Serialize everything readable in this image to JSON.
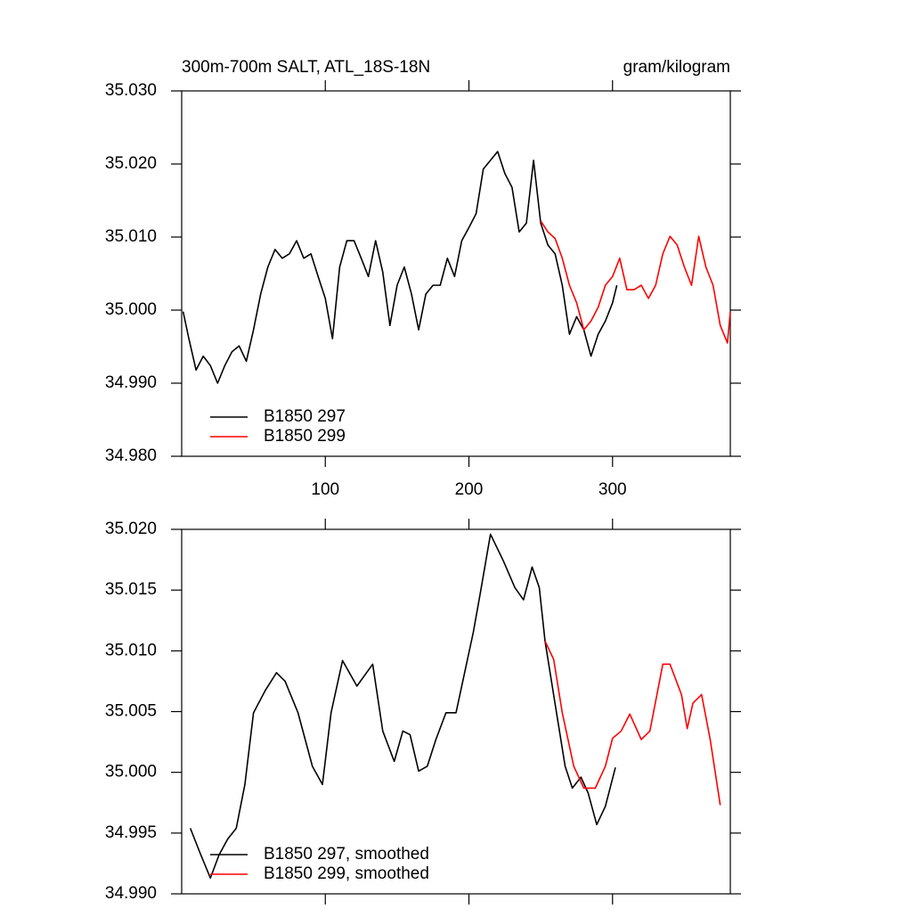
{
  "chart_data": [
    {
      "type": "line",
      "title": "300m-700m SALT, ATL_18S-18N",
      "units": "gram/kilogram",
      "xlim": [
        0,
        382
      ],
      "xticks": [
        100,
        200,
        300
      ],
      "ylim": [
        34.98,
        35.03
      ],
      "yticks": [
        {
          "value": 34.98,
          "label": "34.980"
        },
        {
          "value": 34.99,
          "label": "34.990"
        },
        {
          "value": 35.0,
          "label": "35.000"
        },
        {
          "value": 35.01,
          "label": "35.010"
        },
        {
          "value": 35.02,
          "label": "35.020"
        },
        {
          "value": 35.03,
          "label": "35.030"
        }
      ],
      "legend": "lower left",
      "series": [
        {
          "name": "B1850 297",
          "color": "#000000",
          "x": [
            1,
            5,
            10,
            15,
            20,
            25,
            30,
            35,
            40,
            45,
            50,
            55,
            60,
            65,
            70,
            75,
            80,
            85,
            90,
            95,
            100,
            105,
            110,
            115,
            120,
            125,
            130,
            135,
            140,
            145,
            150,
            155,
            160,
            165,
            170,
            175,
            180,
            185,
            190,
            195,
            200,
            205,
            210,
            215,
            220,
            225,
            230,
            235,
            240,
            245,
            250,
            255,
            260,
            265,
            270,
            275,
            280,
            285,
            290,
            295,
            300,
            303
          ],
          "values": [
            34.9998,
            34.9961,
            34.9918,
            34.9937,
            34.9924,
            34.99,
            34.9924,
            34.9943,
            34.9951,
            34.993,
            34.9973,
            35.0022,
            35.0059,
            35.0083,
            35.0071,
            35.0077,
            35.0095,
            35.0071,
            35.0077,
            35.0046,
            35.0016,
            34.9961,
            35.0059,
            35.0095,
            35.0095,
            35.0071,
            35.0046,
            35.0095,
            35.0052,
            34.9979,
            35.0034,
            35.0059,
            35.0022,
            34.9973,
            35.0022,
            35.0034,
            35.0034,
            35.0071,
            35.0046,
            35.0095,
            35.0113,
            35.0132,
            35.0193,
            35.0205,
            35.0217,
            35.0187,
            35.0168,
            35.0107,
            35.0119,
            35.0205,
            35.0119,
            35.0089,
            35.0077,
            35.0034,
            34.9967,
            34.9991,
            34.9973,
            34.9937,
            34.9967,
            34.9985,
            35.001,
            35.0034
          ]
        },
        {
          "name": "B1850 299",
          "color": "#ff0000",
          "x": [
            250,
            255,
            260,
            265,
            270,
            275,
            280,
            285,
            290,
            295,
            300,
            305,
            310,
            315,
            320,
            325,
            330,
            335,
            340,
            345,
            350,
            355,
            360,
            365,
            370,
            375,
            380,
            382
          ],
          "values": [
            35.0122,
            35.0107,
            35.0098,
            35.0071,
            35.0034,
            35.001,
            34.9973,
            34.9985,
            35.0004,
            35.0034,
            35.0046,
            35.0071,
            35.0028,
            35.0028,
            35.0034,
            35.0016,
            35.0034,
            35.0077,
            35.0101,
            35.0089,
            35.0059,
            35.0034,
            35.0101,
            35.0059,
            35.0034,
            34.9979,
            34.9955,
            34.9998
          ]
        }
      ]
    },
    {
      "type": "line",
      "xlim": [
        0,
        382
      ],
      "xticks": [
        100,
        200,
        300
      ],
      "ylim": [
        34.99,
        35.02
      ],
      "yticks": [
        {
          "value": 34.99,
          "label": "34.990"
        },
        {
          "value": 34.995,
          "label": "34.995"
        },
        {
          "value": 35.0,
          "label": "35.000"
        },
        {
          "value": 35.005,
          "label": "35.005"
        },
        {
          "value": 35.01,
          "label": "35.010"
        },
        {
          "value": 35.015,
          "label": "35.015"
        },
        {
          "value": 35.02,
          "label": "35.020"
        }
      ],
      "legend": "lower left",
      "series": [
        {
          "name": "B1850 297, smoothed",
          "color": "#000000",
          "x": [
            6,
            13,
            20,
            26,
            32,
            38,
            44,
            50,
            58,
            66,
            72,
            81,
            91,
            98,
            104,
            112,
            122,
            133,
            140,
            148,
            154,
            159,
            165,
            171,
            177,
            184,
            191,
            203,
            208,
            215,
            224,
            232,
            238,
            244,
            249,
            253,
            261,
            267,
            272,
            278,
            283,
            289,
            295,
            302
          ],
          "values": [
            34.9954,
            34.9933,
            34.9913,
            34.9932,
            34.9945,
            34.9954,
            34.999,
            35.0049,
            35.0067,
            35.0082,
            35.0075,
            35.0049,
            35.0005,
            34.999,
            35.0049,
            35.0092,
            35.0071,
            35.0089,
            35.0034,
            35.0009,
            35.0034,
            35.0031,
            35.0001,
            35.0005,
            35.0027,
            35.0049,
            35.0049,
            35.0115,
            35.0148,
            35.0196,
            35.0174,
            35.0152,
            35.0142,
            35.0169,
            35.0152,
            35.0108,
            35.0049,
            35.0005,
            34.9987,
            34.9996,
            34.9983,
            34.9957,
            34.9972,
            35.0004
          ]
        },
        {
          "name": "B1850 299, smoothed",
          "color": "#ff0000",
          "x": [
            253,
            259,
            265,
            273,
            280,
            288,
            295,
            300,
            306,
            312,
            320,
            326,
            335,
            340,
            348,
            352,
            356,
            362,
            368,
            375
          ],
          "values": [
            35.0108,
            35.0093,
            35.0049,
            35.0005,
            34.9987,
            34.9987,
            35.0005,
            35.0028,
            35.0034,
            35.0048,
            35.0027,
            35.0034,
            35.0089,
            35.0089,
            35.0064,
            35.0036,
            35.0057,
            35.0064,
            35.0027,
            34.9973
          ]
        }
      ]
    }
  ]
}
